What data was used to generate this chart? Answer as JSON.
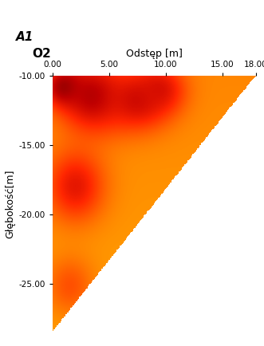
{
  "title_line1": "A1",
  "title_line2": "O2",
  "xlabel": "Odstęp [m]",
  "ylabel": "Głębokość[m]",
  "x_min": 0.0,
  "x_max": 18.0,
  "y_min": -28.5,
  "y_max": -10.0,
  "xticks": [
    0.0,
    5.0,
    10.0,
    15.0,
    18.0
  ],
  "yticks": [
    -10.0,
    -15.0,
    -20.0,
    -25.0
  ],
  "background_color": "#ffffff",
  "blob_positions": [
    [
      1.0,
      -10.8,
      0.95,
      1.2,
      1.0
    ],
    [
      3.5,
      -11.5,
      0.88,
      2.0,
      1.8
    ],
    [
      7.5,
      -11.8,
      0.8,
      2.0,
      1.5
    ],
    [
      9.5,
      -11.0,
      0.75,
      1.5,
      1.2
    ],
    [
      2.0,
      -18.0,
      0.78,
      1.8,
      1.8
    ],
    [
      1.5,
      -25.2,
      0.6,
      1.5,
      1.5
    ]
  ]
}
